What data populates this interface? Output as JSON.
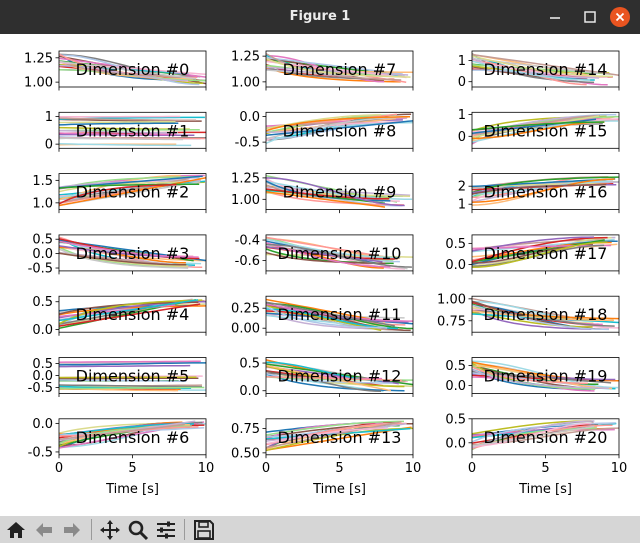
{
  "window": {
    "title": "Figure 1",
    "minimize_icon": "minimize-icon",
    "maximize_icon": "maximize-icon",
    "close_icon": "close-icon",
    "close_color": "#e95420"
  },
  "toolbar": {
    "buttons": [
      "home-icon",
      "back-arrow-icon",
      "forward-arrow-icon",
      "pan-icon",
      "zoom-icon",
      "configure-subplots-icon",
      "save-icon"
    ]
  },
  "palette": [
    "#1f77b4",
    "#ff7f0e",
    "#2ca02c",
    "#d62728",
    "#9467bd",
    "#8c564b",
    "#e377c2",
    "#7f7f7f",
    "#bcbd22",
    "#17becf",
    "#aec7e8",
    "#ffbb78",
    "#98df8a",
    "#ff9896",
    "#c5b0d5",
    "#c49c94",
    "#f7b6d2",
    "#c7c7c7",
    "#dbdb8d",
    "#9edae5"
  ],
  "chart_data": {
    "type": "line",
    "layout": "7 rows x 3 columns of small line plots",
    "xlabel": "Time [s]",
    "xlim": [
      0,
      10
    ],
    "xticks": [
      0,
      5,
      10
    ],
    "panels": [
      {
        "label": "Dimension #0",
        "ylim": [
          0.95,
          1.32
        ],
        "yticks": [
          1.0,
          1.25
        ],
        "ytick_labels": [
          "1.00",
          "1.25"
        ],
        "trend": "rise then gentle fall, bundle 1.05–1.28"
      },
      {
        "label": "Dimension #1",
        "ylim": [
          -0.15,
          1.15
        ],
        "yticks": [
          0,
          1
        ],
        "ytick_labels": [
          "0",
          "1"
        ],
        "trend": "flat spread 0–1"
      },
      {
        "label": "Dimension #2",
        "ylim": [
          0.85,
          1.65
        ],
        "yticks": [
          1.0,
          1.5
        ],
        "ytick_labels": [
          "1.0",
          "1.5"
        ],
        "trend": "rising to 1.5"
      },
      {
        "label": "Dimension #3",
        "ylim": [
          -0.6,
          0.65
        ],
        "yticks": [
          -0.5,
          0,
          0.5
        ],
        "ytick_labels": [
          "-0.5",
          "0.0",
          "0.5"
        ],
        "trend": "descending bundle"
      },
      {
        "label": "Dimension #4",
        "ylim": [
          -0.05,
          0.6
        ],
        "yticks": [
          0,
          0.5
        ],
        "ytick_labels": [
          "0.0",
          "0.5"
        ],
        "trend": "rising bundle"
      },
      {
        "label": "Dimension #5",
        "ylim": [
          -0.75,
          0.75
        ],
        "yticks": [
          -0.5,
          0,
          0.5
        ],
        "ytick_labels": [
          "-0.5",
          "0.0",
          "0.5"
        ],
        "trend": "flat near 0.5"
      },
      {
        "label": "Dimension #6",
        "ylim": [
          -0.55,
          0.08
        ],
        "yticks": [
          -0.5,
          0
        ],
        "ytick_labels": [
          "-0.5",
          "0.0"
        ],
        "trend": "rising toward 0"
      },
      {
        "label": "Dimension #7",
        "ylim": [
          0.95,
          1.3
        ],
        "yticks": [
          1.0,
          1.25
        ],
        "ytick_labels": [
          "1.00",
          "1.25"
        ],
        "trend": "gently falling"
      },
      {
        "label": "Dimension #8",
        "ylim": [
          -0.62,
          0.08
        ],
        "yticks": [
          -0.5,
          0
        ],
        "ytick_labels": [
          "-0.5",
          "0.0"
        ],
        "trend": "rising toward 0"
      },
      {
        "label": "Dimension #9",
        "ylim": [
          0.88,
          1.3
        ],
        "yticks": [
          1.0,
          1.25
        ],
        "ytick_labels": [
          "1.00",
          "1.25"
        ],
        "trend": "falling"
      },
      {
        "label": "Dimension #10",
        "ylim": [
          -0.7,
          -0.35
        ],
        "yticks": [
          -0.6,
          -0.4
        ],
        "ytick_labels": [
          "-0.6",
          "-0.4"
        ],
        "trend": "falling"
      },
      {
        "label": "Dimension #11",
        "ylim": [
          -0.05,
          0.4
        ],
        "yticks": [
          0,
          0.25
        ],
        "ytick_labels": [
          "0.00",
          "0.25"
        ],
        "trend": "falling toward 0"
      },
      {
        "label": "Dimension #12",
        "ylim": [
          -0.05,
          0.6
        ],
        "yticks": [
          0,
          0.5
        ],
        "ytick_labels": [
          "0.0",
          "0.5"
        ],
        "trend": "falling"
      },
      {
        "label": "Dimension #13",
        "ylim": [
          0.48,
          0.85
        ],
        "yticks": [
          0.5,
          0.75
        ],
        "ytick_labels": [
          "0.50",
          "0.75"
        ],
        "trend": "rising"
      },
      {
        "label": "Dimension #14",
        "ylim": [
          -0.25,
          1.45
        ],
        "yticks": [
          0,
          1
        ],
        "ytick_labels": [
          "0",
          "1"
        ],
        "trend": "falling from 1.3"
      },
      {
        "label": "Dimension #15",
        "ylim": [
          -0.55,
          1.1
        ],
        "yticks": [
          0,
          1
        ],
        "ytick_labels": [
          "0",
          "1"
        ],
        "trend": "slowly rising"
      },
      {
        "label": "Dimension #16",
        "ylim": [
          0.7,
          2.7
        ],
        "yticks": [
          1,
          2
        ],
        "ytick_labels": [
          "1",
          "2"
        ],
        "trend": "rising to 2.4"
      },
      {
        "label": "Dimension #17",
        "ylim": [
          -0.15,
          0.7
        ],
        "yticks": [
          0,
          0.5
        ],
        "ytick_labels": [
          "0.0",
          "0.5"
        ],
        "trend": "rising"
      },
      {
        "label": "Dimension #18",
        "ylim": [
          0.62,
          1.03
        ],
        "yticks": [
          0.75,
          1.0
        ],
        "ytick_labels": [
          "0.75",
          "1.00"
        ],
        "trend": "falling"
      },
      {
        "label": "Dimension #19",
        "ylim": [
          -0.2,
          0.7
        ],
        "yticks": [
          0,
          0.5
        ],
        "ytick_labels": [
          "0.0",
          "0.5"
        ],
        "trend": "falling"
      },
      {
        "label": "Dimension #20",
        "ylim": [
          -0.25,
          0.5
        ],
        "yticks": [
          0,
          0.5
        ],
        "ytick_labels": [
          "0.0",
          "0.5"
        ],
        "trend": "rising"
      }
    ]
  }
}
